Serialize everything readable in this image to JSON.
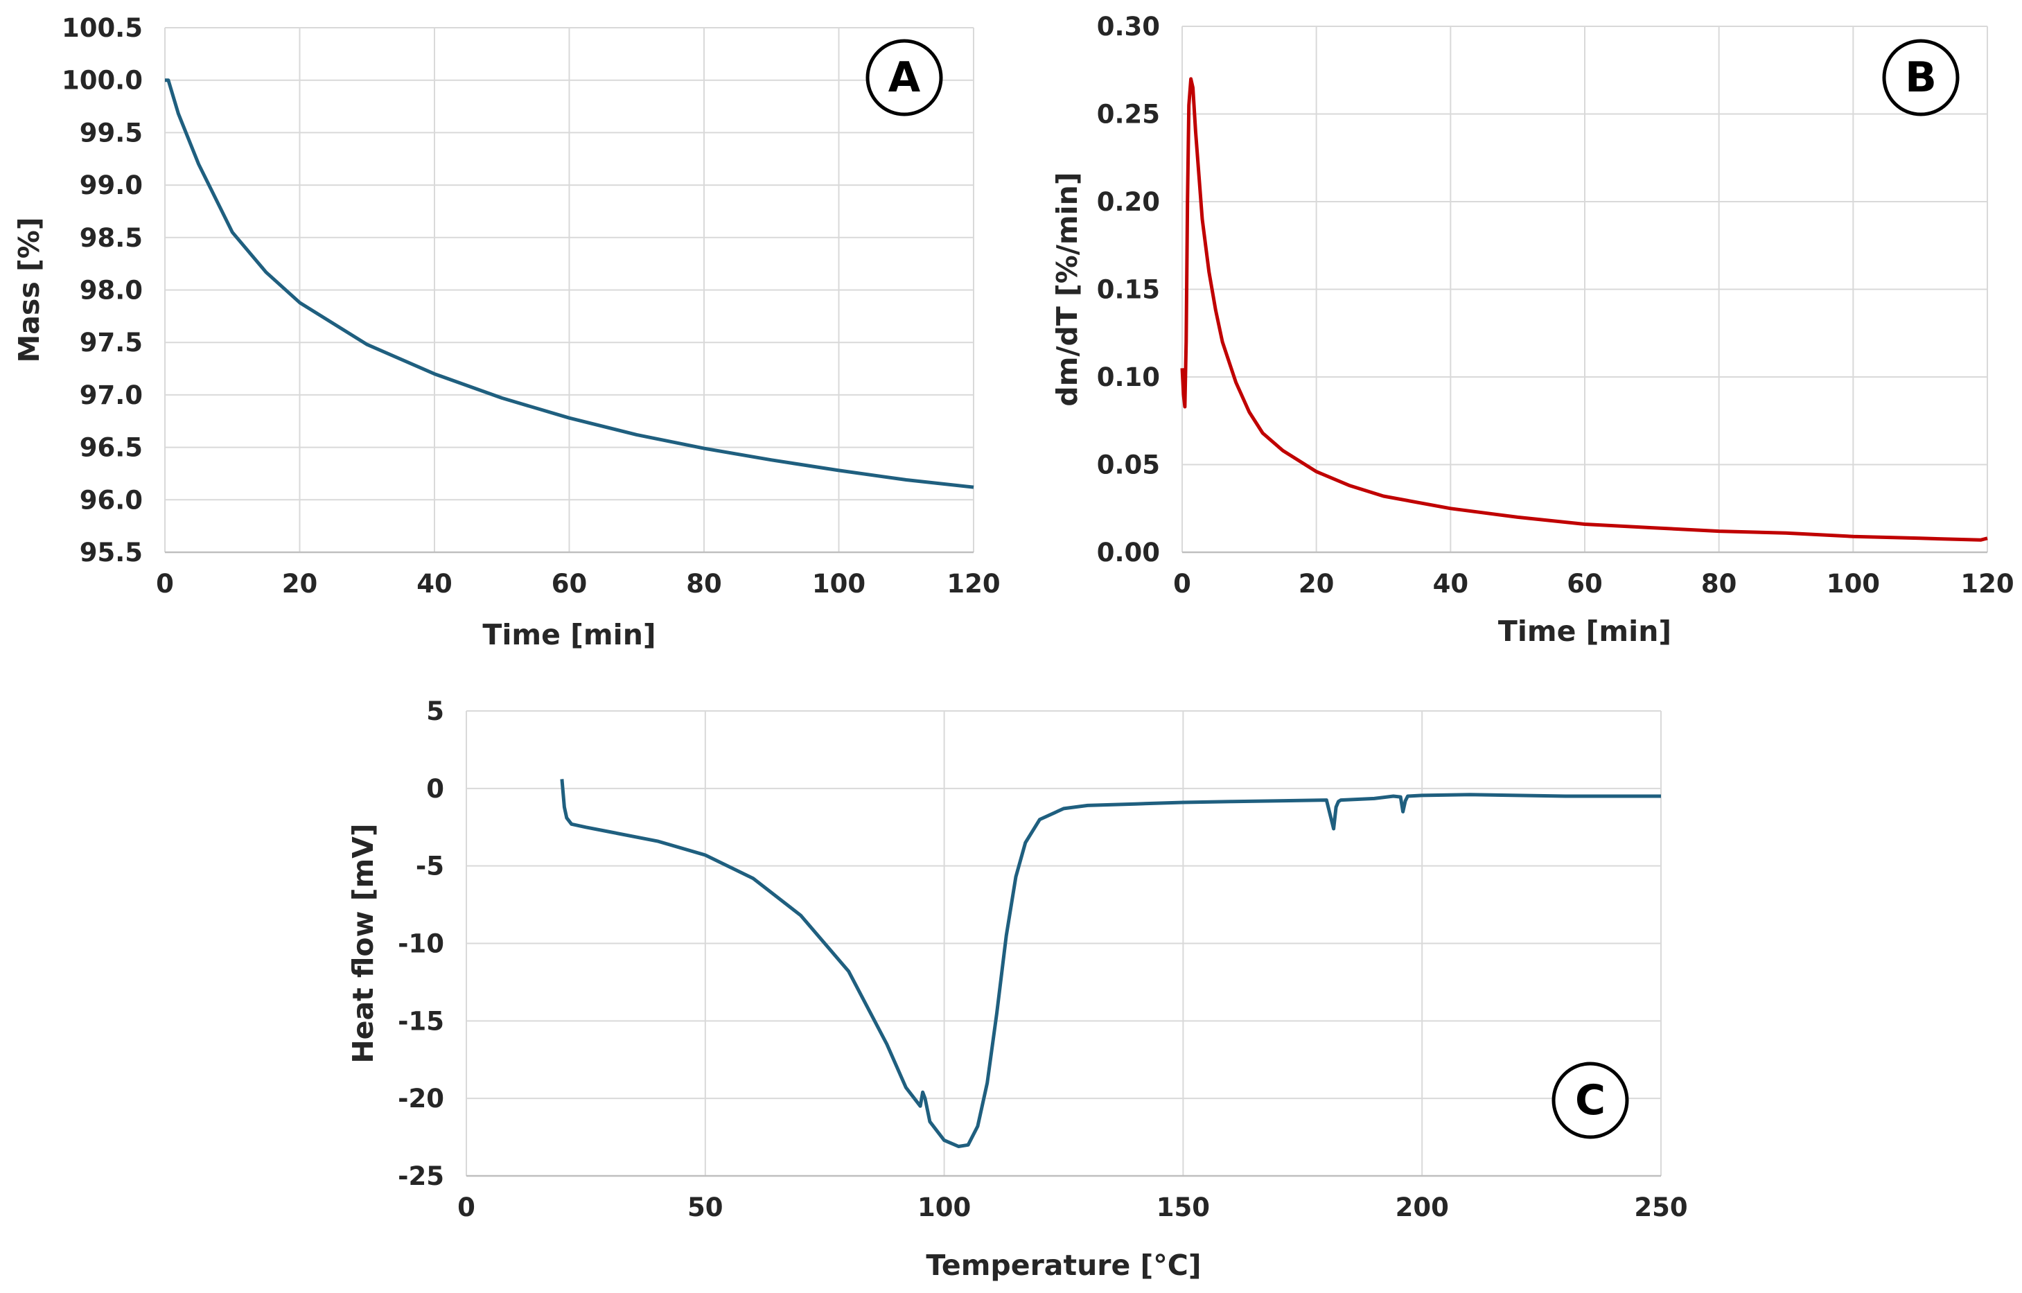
{
  "chart_data": [
    {
      "id": "A",
      "type": "line",
      "panel_label": "A",
      "xlabel": "Time [min]",
      "ylabel": "Mass [%]",
      "xlim": [
        0,
        120
      ],
      "ylim": [
        95.5,
        100.5
      ],
      "xticks": [
        "0",
        "20",
        "40",
        "60",
        "80",
        "100",
        "120"
      ],
      "yticks": [
        "95.5",
        "96.0",
        "96.5",
        "97.0",
        "97.5",
        "98.0",
        "98.5",
        "99.0",
        "99.5",
        "100.0",
        "100.5"
      ],
      "grid": true,
      "series": [
        {
          "name": "Mass",
          "color": "#1f5f7f",
          "x": [
            0,
            0.5,
            2,
            5,
            10,
            15,
            20,
            30,
            40,
            50,
            60,
            70,
            80,
            90,
            100,
            110,
            120
          ],
          "y": [
            100.0,
            100.0,
            99.68,
            99.2,
            98.55,
            98.17,
            97.88,
            97.48,
            97.2,
            96.97,
            96.78,
            96.62,
            96.49,
            96.38,
            96.28,
            96.19,
            96.12
          ]
        }
      ]
    },
    {
      "id": "B",
      "type": "line",
      "panel_label": "B",
      "xlabel": "Time [min]",
      "ylabel": "dm/dT [%/min]",
      "xlim": [
        0,
        120
      ],
      "ylim": [
        0,
        0.3
      ],
      "xticks": [
        "0",
        "20",
        "40",
        "60",
        "80",
        "100",
        "120"
      ],
      "yticks": [
        "0.00",
        "0.05",
        "0.10",
        "0.15",
        "0.20",
        "0.25",
        "0.30"
      ],
      "grid": true,
      "series": [
        {
          "name": "dm/dT",
          "color": "#c00000",
          "x": [
            0,
            0.2,
            0.4,
            0.6,
            0.8,
            1.0,
            1.3,
            1.6,
            2,
            3,
            4,
            5,
            6,
            8,
            10,
            12,
            15,
            20,
            25,
            30,
            40,
            50,
            60,
            70,
            80,
            90,
            100,
            110,
            119,
            120
          ],
          "y": [
            0.105,
            0.09,
            0.083,
            0.12,
            0.2,
            0.255,
            0.27,
            0.265,
            0.24,
            0.19,
            0.16,
            0.138,
            0.12,
            0.097,
            0.08,
            0.068,
            0.058,
            0.046,
            0.038,
            0.032,
            0.025,
            0.02,
            0.016,
            0.014,
            0.012,
            0.011,
            0.009,
            0.008,
            0.007,
            0.008
          ]
        }
      ]
    },
    {
      "id": "C",
      "type": "line",
      "panel_label": "C",
      "xlabel": "Temperature [°C]",
      "ylabel": "Heat flow [mV]",
      "xlim": [
        0,
        250
      ],
      "ylim": [
        -25,
        5
      ],
      "xticks": [
        "0",
        "50",
        "100",
        "150",
        "200",
        "250"
      ],
      "yticks": [
        "-25",
        "-20",
        "-15",
        "-10",
        "-5",
        "0",
        "5"
      ],
      "grid": true,
      "series": [
        {
          "name": "Heat flow",
          "color": "#1f5f7f",
          "x": [
            20,
            20.5,
            21,
            22,
            25,
            30,
            40,
            50,
            60,
            70,
            80,
            88,
            92,
            95,
            95.5,
            96,
            97,
            100,
            103,
            105,
            107,
            109,
            111,
            113,
            115,
            117,
            120,
            125,
            130,
            140,
            150,
            160,
            170,
            180,
            181.5,
            182,
            182.5,
            183,
            190,
            194,
            195.5,
            196,
            196.5,
            197,
            200,
            210,
            220,
            230,
            240,
            250
          ],
          "y": [
            0.6,
            -1.2,
            -1.9,
            -2.3,
            -2.5,
            -2.8,
            -3.4,
            -4.3,
            -5.8,
            -8.2,
            -11.8,
            -16.5,
            -19.3,
            -20.5,
            -19.6,
            -20.0,
            -21.5,
            -22.7,
            -23.1,
            -23.0,
            -21.8,
            -19.0,
            -14.5,
            -9.5,
            -5.7,
            -3.5,
            -2.0,
            -1.3,
            -1.1,
            -1.0,
            -0.9,
            -0.85,
            -0.8,
            -0.75,
            -2.6,
            -1.2,
            -0.85,
            -0.75,
            -0.65,
            -0.5,
            -0.55,
            -1.5,
            -0.8,
            -0.5,
            -0.45,
            -0.4,
            -0.45,
            -0.5,
            -0.5,
            -0.5
          ]
        }
      ]
    }
  ]
}
